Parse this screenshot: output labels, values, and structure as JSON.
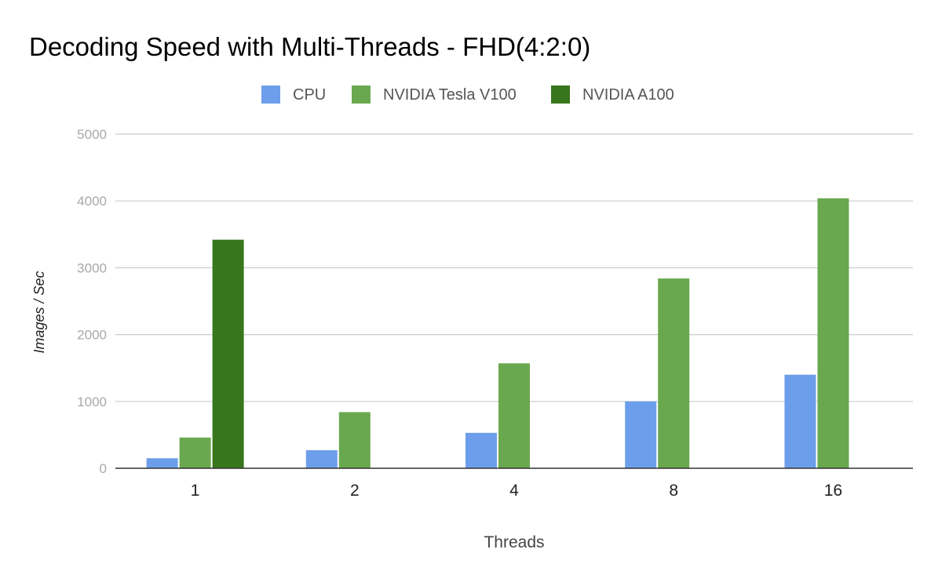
{
  "chart_data": {
    "type": "bar",
    "title": "Decoding Speed with Multi-Threads -  FHD(4:2:0)",
    "xlabel": "Threads",
    "ylabel": "Images / Sec",
    "ylim": [
      0,
      5000
    ],
    "yticks": [
      0,
      1000,
      2000,
      3000,
      4000,
      5000
    ],
    "grid": true,
    "legend_position": "top",
    "categories": [
      "1",
      "2",
      "4",
      "8",
      "16"
    ],
    "series": [
      {
        "name": "CPU",
        "color": "#6d9eeb",
        "values": [
          150,
          270,
          530,
          1000,
          1400
        ]
      },
      {
        "name": "NVIDIA Tesla V100",
        "color": "#6aa84f",
        "values": [
          460,
          840,
          1570,
          2840,
          4040
        ]
      },
      {
        "name": "NVIDIA A100",
        "color": "#38761d",
        "values": [
          3420,
          null,
          null,
          null,
          null
        ]
      }
    ]
  }
}
